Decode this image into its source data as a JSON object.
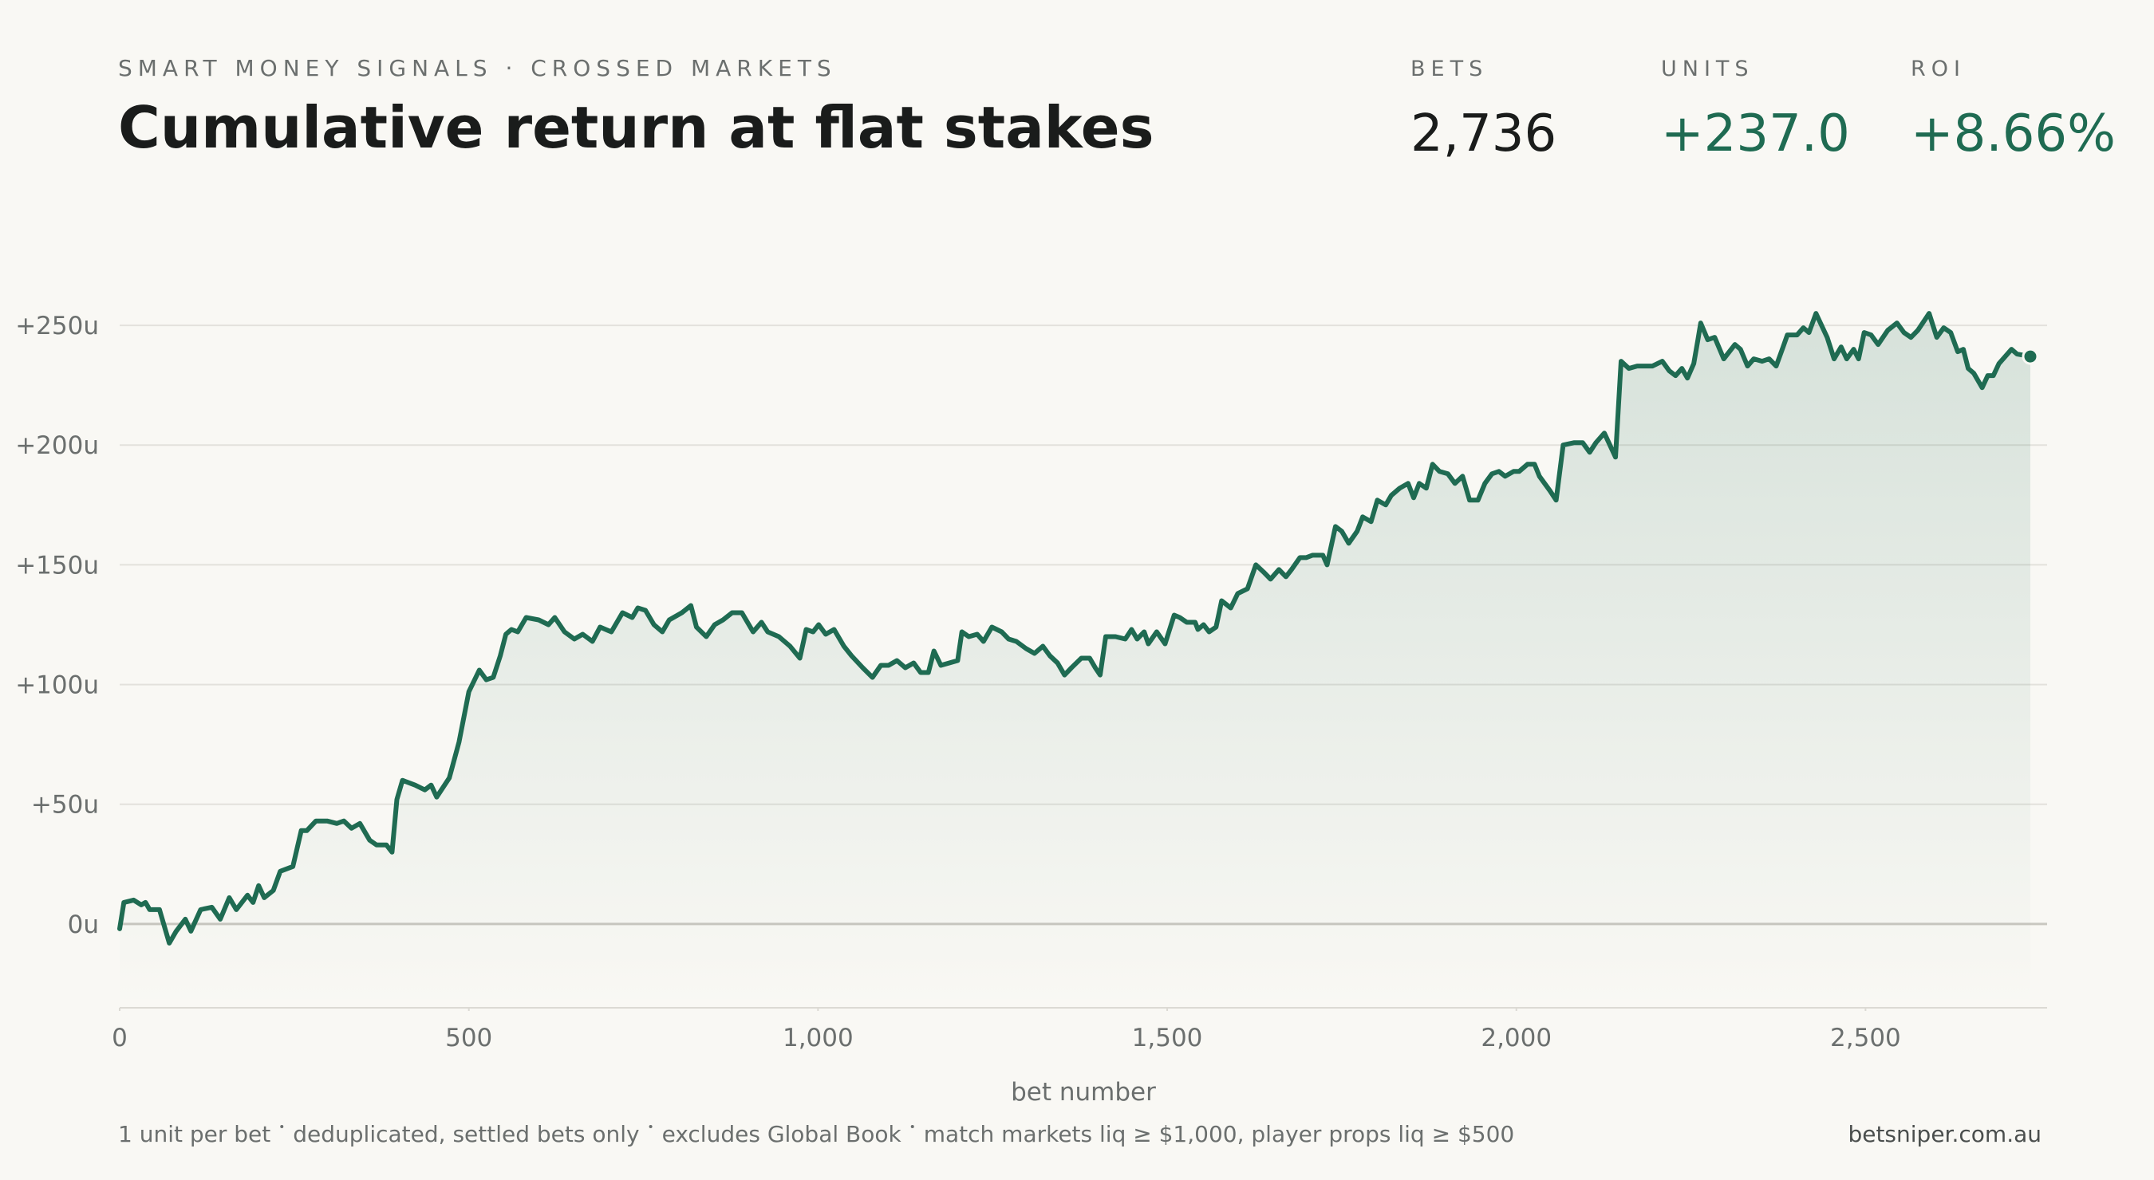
{
  "header": {
    "eyebrow": "SMART MONEY SIGNALS · CROSSED MARKETS",
    "title": "Cumulative return at flat stakes"
  },
  "stats": [
    {
      "label": "BETS",
      "value": "2,736",
      "color": "#1a1c1b"
    },
    {
      "label": "UNITS",
      "value": "+237.0",
      "color": "#1f6b52"
    },
    {
      "label": "ROI",
      "value": "+8.66%",
      "color": "#1f6b52"
    }
  ],
  "chart_data": {
    "type": "line",
    "xlabel": "bet number",
    "color": "#1f6b52",
    "grid": true,
    "xlim": [
      0,
      2760
    ],
    "ylim": [
      -35,
      275
    ],
    "xticks": [
      0,
      500,
      {
        "value": 1000,
        "label": "1,000"
      },
      {
        "value": 1500,
        "label": "1,500"
      },
      {
        "value": 2000,
        "label": "2,000"
      },
      {
        "value": 2500,
        "label": "2,500"
      }
    ],
    "yticks": [
      {
        "value": 0,
        "label": "0u"
      },
      {
        "value": 50,
        "label": "+50u"
      },
      {
        "value": 100,
        "label": "+100u"
      },
      {
        "value": 150,
        "label": "+150u"
      },
      {
        "value": 200,
        "label": "+200u"
      },
      {
        "value": 250,
        "label": "+250u"
      }
    ],
    "x": [
      0,
      6,
      20,
      31,
      37,
      43,
      57,
      71,
      81,
      94,
      102,
      116,
      132,
      144,
      157,
      167,
      183,
      191,
      199,
      207,
      220,
      230,
      248,
      260,
      268,
      281,
      297,
      311,
      321,
      332,
      344,
      358,
      368,
      382,
      390,
      397,
      405,
      423,
      437,
      446,
      454,
      472,
      486,
      500,
      515,
      525,
      535,
      545,
      553,
      561,
      570,
      582,
      600,
      614,
      623,
      637,
      651,
      663,
      677,
      688,
      704,
      720,
      734,
      742,
      753,
      765,
      777,
      787,
      805,
      818,
      826,
      840,
      852,
      864,
      877,
      891,
      907,
      919,
      928,
      944,
      960,
      974,
      983,
      993,
      1001,
      1011,
      1023,
      1037,
      1048,
      1064,
      1078,
      1090,
      1101,
      1113,
      1125,
      1137,
      1147,
      1158,
      1166,
      1176,
      1200,
      1206,
      1216,
      1228,
      1237,
      1249,
      1263,
      1273,
      1284,
      1298,
      1310,
      1322,
      1332,
      1343,
      1353,
      1363,
      1377,
      1389,
      1397,
      1404,
      1412,
      1426,
      1440,
      1449,
      1457,
      1467,
      1473,
      1485,
      1497,
      1510,
      1518,
      1528,
      1540,
      1544,
      1552,
      1560,
      1570,
      1578,
      1591,
      1601,
      1615,
      1627,
      1638,
      1648,
      1660,
      1670,
      1678,
      1690,
      1699,
      1708,
      1723,
      1729,
      1741,
      1750,
      1760,
      1772,
      1780,
      1792,
      1801,
      1813,
      1821,
      1833,
      1845,
      1853,
      1861,
      1871,
      1880,
      1890,
      1902,
      1912,
      1923,
      1933,
      1945,
      1955,
      1965,
      1975,
      1984,
      1996,
      2004,
      2016,
      2026,
      2033,
      2048,
      2057,
      2067,
      2083,
      2095,
      2105,
      2114,
      2126,
      2142,
      2150,
      2161,
      2173,
      2183,
      2195,
      2209,
      2219,
      2228,
      2237,
      2245,
      2254,
      2260,
      2264,
      2274,
      2284,
      2297,
      2305,
      2313,
      2321,
      2331,
      2340,
      2352,
      2362,
      2372,
      2382,
      2388,
      2402,
      2411,
      2419,
      2429,
      2437,
      2445,
      2455,
      2465,
      2473,
      2483,
      2490,
      2498,
      2508,
      2518,
      2532,
      2545,
      2555,
      2565,
      2575,
      2591,
      2602,
      2612,
      2622,
      2632,
      2640,
      2647,
      2655,
      2667,
      2675,
      2683,
      2691,
      2700,
      2709,
      2717,
      2736
    ],
    "values": [
      -2,
      9,
      10,
      8,
      9,
      6,
      6,
      -8,
      -3,
      2,
      -3,
      6,
      7,
      2,
      11,
      6,
      12,
      9,
      16,
      11,
      14,
      22,
      24,
      39,
      39,
      43,
      43,
      42,
      43,
      40,
      42,
      35,
      33,
      33,
      30,
      52,
      60,
      58,
      56,
      58,
      53,
      61,
      76,
      97,
      106,
      102,
      103,
      112,
      121,
      123,
      122,
      128,
      127,
      125,
      128,
      122,
      119,
      121,
      118,
      124,
      122,
      130,
      128,
      132,
      131,
      125,
      122,
      127,
      130,
      133,
      124,
      120,
      125,
      127,
      130,
      130,
      122,
      126,
      122,
      120,
      116,
      111,
      123,
      122,
      125,
      121,
      123,
      116,
      112,
      107,
      103,
      108,
      108,
      110,
      107,
      109,
      105,
      105,
      114,
      108,
      110,
      122,
      120,
      121,
      118,
      124,
      122,
      119,
      118,
      115,
      113,
      116,
      112,
      109,
      104,
      107,
      111,
      111,
      107,
      104,
      120,
      120,
      119,
      123,
      119,
      122,
      117,
      122,
      117,
      129,
      128,
      126,
      126,
      123,
      125,
      122,
      124,
      135,
      132,
      138,
      140,
      150,
      147,
      144,
      148,
      145,
      148,
      153,
      153,
      154,
      154,
      150,
      166,
      164,
      159,
      164,
      170,
      168,
      177,
      175,
      179,
      182,
      184,
      178,
      184,
      182,
      192,
      189,
      188,
      184,
      187,
      177,
      177,
      184,
      188,
      189,
      187,
      189,
      189,
      192,
      192,
      187,
      181,
      177,
      200,
      201,
      201,
      197,
      201,
      205,
      195,
      235,
      232,
      233,
      233,
      233,
      235,
      231,
      229,
      232,
      228,
      234,
      244,
      251,
      244,
      245,
      236,
      239,
      242,
      240,
      233,
      236,
      235,
      236,
      233,
      241,
      246,
      246,
      249,
      247,
      255,
      250,
      245,
      236,
      241,
      236,
      240,
      236,
      247,
      246,
      242,
      248,
      251,
      247,
      245,
      248,
      255,
      245,
      249,
      247,
      239,
      240,
      232,
      230,
      224,
      229,
      229,
      234,
      237,
      240,
      238,
      237
    ]
  },
  "footer": {
    "notes": [
      "1 unit per bet",
      "deduplicated, settled bets only",
      "excludes Global Book",
      "match markets liq ≥ $1,000, player props liq ≥ $500"
    ],
    "source": "betsniper.com.au"
  }
}
